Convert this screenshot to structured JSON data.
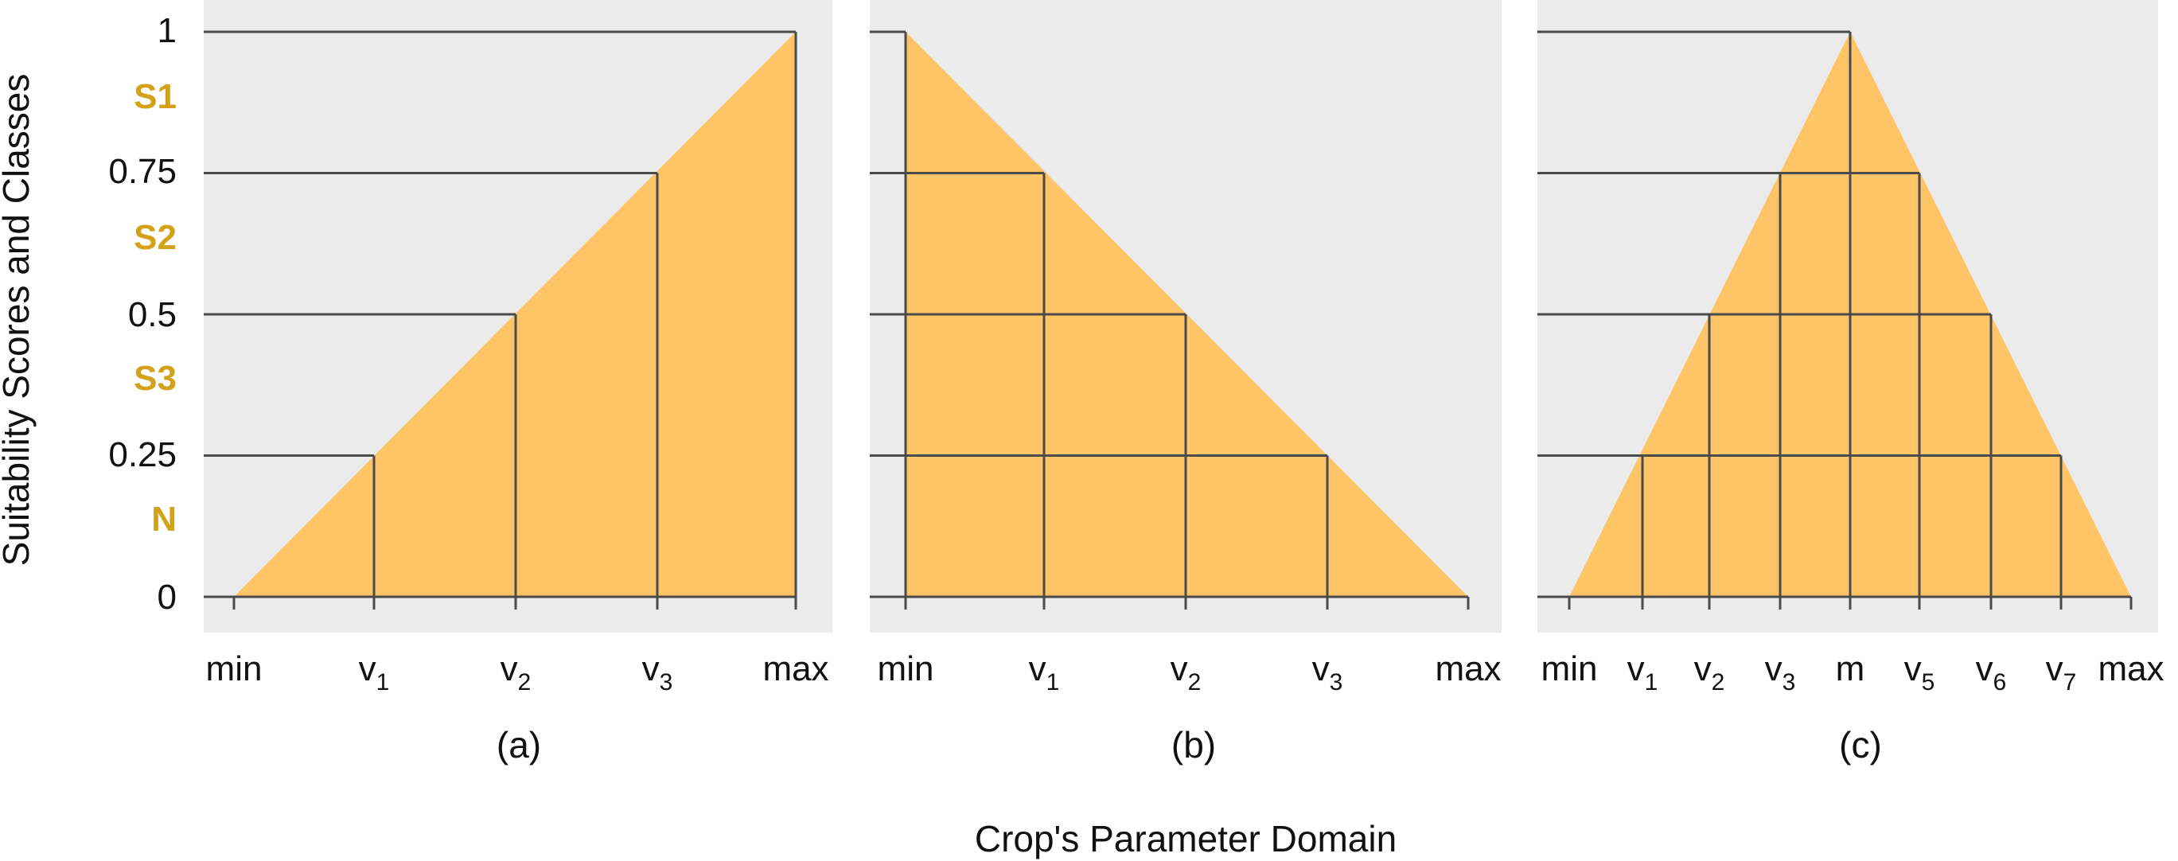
{
  "colors": {
    "panel_bg": "#ebebeb",
    "fill": "#ffc466",
    "line": "#4a4a4a",
    "class_label": "#d4a21a"
  },
  "y_axis": {
    "label": "Suitability Scores and Classes",
    "ticks": [
      "1",
      "0.75",
      "0.5",
      "0.25",
      "0"
    ],
    "classes": [
      "S1",
      "S2",
      "S3",
      "N"
    ]
  },
  "x_axis_title": "Crop's Parameter Domain",
  "panels": [
    {
      "caption": "(a)",
      "ticks": [
        {
          "base": "min",
          "sub": ""
        },
        {
          "base": "v",
          "sub": "1"
        },
        {
          "base": "v",
          "sub": "2"
        },
        {
          "base": "v",
          "sub": "3"
        },
        {
          "base": "max",
          "sub": ""
        }
      ]
    },
    {
      "caption": "(b)",
      "ticks": [
        {
          "base": "min",
          "sub": ""
        },
        {
          "base": "v",
          "sub": "1"
        },
        {
          "base": "v",
          "sub": "2"
        },
        {
          "base": "v",
          "sub": "3"
        },
        {
          "base": "max",
          "sub": ""
        }
      ]
    },
    {
      "caption": "(c)",
      "ticks": [
        {
          "base": "min",
          "sub": ""
        },
        {
          "base": "v",
          "sub": "1"
        },
        {
          "base": "v",
          "sub": "2"
        },
        {
          "base": "v",
          "sub": "3"
        },
        {
          "base": "m",
          "sub": ""
        },
        {
          "base": "v",
          "sub": "5"
        },
        {
          "base": "v",
          "sub": "6"
        },
        {
          "base": "v",
          "sub": "7"
        },
        {
          "base": "max",
          "sub": ""
        }
      ]
    }
  ]
}
